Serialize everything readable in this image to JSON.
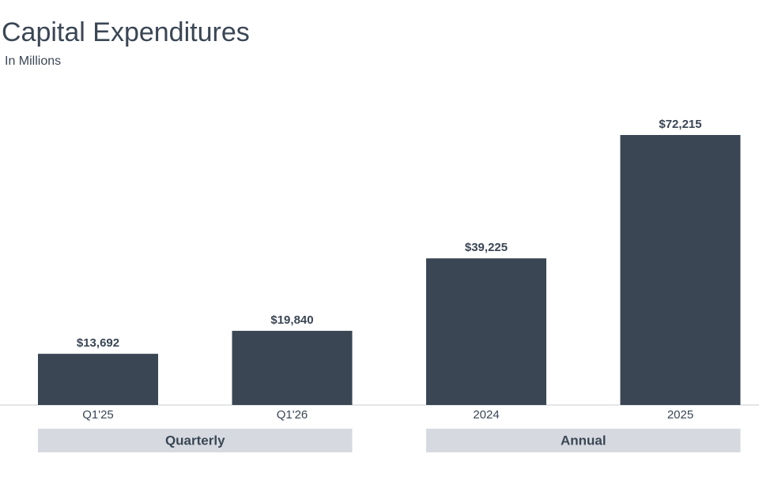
{
  "chart_data": {
    "type": "bar",
    "title": "Capital Expenditures",
    "subtitle": "In Millions",
    "color": "#3a4654",
    "groups": [
      {
        "name": "Quarterly",
        "categories": [
          "Q1'25",
          "Q1'26"
        ],
        "values": [
          13692,
          19840
        ],
        "value_labels": [
          "$13,692",
          "$19,840"
        ]
      },
      {
        "name": "Annual",
        "categories": [
          "2024",
          "2025"
        ],
        "values": [
          39225,
          72215
        ],
        "value_labels": [
          "$39,225",
          "$72,215"
        ]
      }
    ]
  }
}
